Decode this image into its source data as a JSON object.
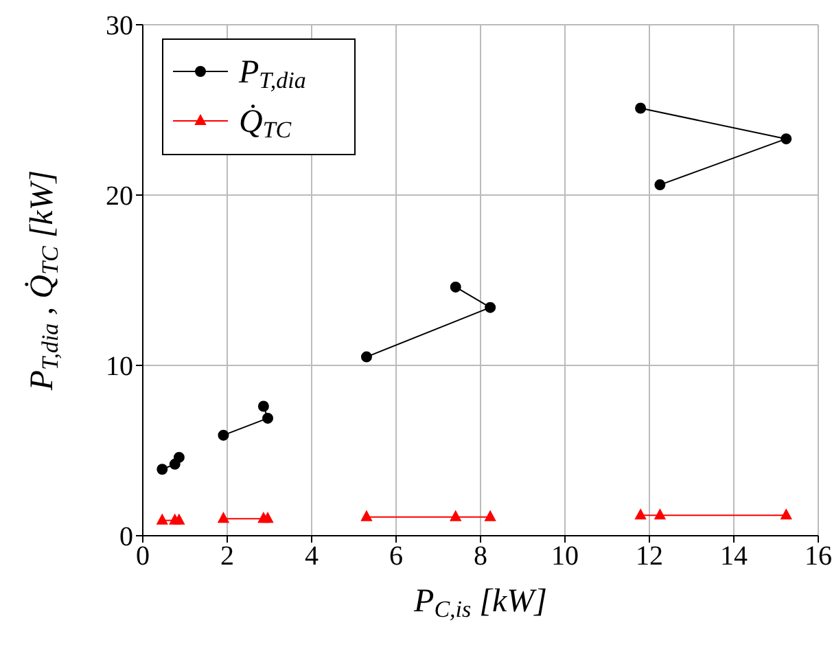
{
  "chart_data": {
    "type": "line",
    "xlabel": "P$_{C,is}$[kW]",
    "ylabel": "P$_{T,dia}$, Q̇$_{TC}$[kW]",
    "xlim": [
      0,
      16
    ],
    "xticks": [
      0,
      2,
      4,
      6,
      8,
      10,
      12,
      14,
      16
    ],
    "ylim": [
      0,
      30
    ],
    "yticks": [
      0,
      10,
      20,
      30
    ],
    "grid": true,
    "legend": "top left",
    "series": [
      {
        "name": "P$_{T,dia}$",
        "color": "#000000",
        "marker": "circle",
        "x": [
          0.46,
          0.76,
          0.86
        ],
        "values": [
          3.9,
          4.2,
          4.6
        ]
      },
      {
        "color": "#000000",
        "marker": "circle",
        "x": [
          1.91,
          2.96,
          2.86
        ],
        "values": [
          5.9,
          6.9,
          7.6
        ]
      },
      {
        "color": "#000000",
        "marker": "circle",
        "x": [
          5.3,
          8.23,
          7.41
        ],
        "values": [
          10.5,
          13.4,
          14.6
        ]
      },
      {
        "color": "#000000",
        "marker": "circle",
        "x": [
          12.25,
          15.24,
          11.79
        ],
        "values": [
          20.6,
          23.3,
          25.1
        ]
      },
      {
        "name": "Q̇$_{TC}$",
        "color": "#ff0000",
        "marker": "triangle",
        "x": [
          0.46,
          0.76,
          0.86
        ],
        "values": [
          0.9,
          0.9,
          0.9
        ]
      },
      {
        "color": "#ff0000",
        "marker": "triangle",
        "x": [
          1.91,
          2.86,
          2.96
        ],
        "values": [
          1.0,
          1.0,
          1.0
        ]
      },
      {
        "color": "#ff0000",
        "marker": "triangle",
        "x": [
          5.3,
          7.41,
          8.23
        ],
        "values": [
          1.1,
          1.1,
          1.1
        ]
      },
      {
        "color": "#ff0000",
        "marker": "triangle",
        "x": [
          11.79,
          12.25,
          15.24
        ],
        "values": [
          1.2,
          1.2,
          1.2
        ]
      }
    ]
  }
}
